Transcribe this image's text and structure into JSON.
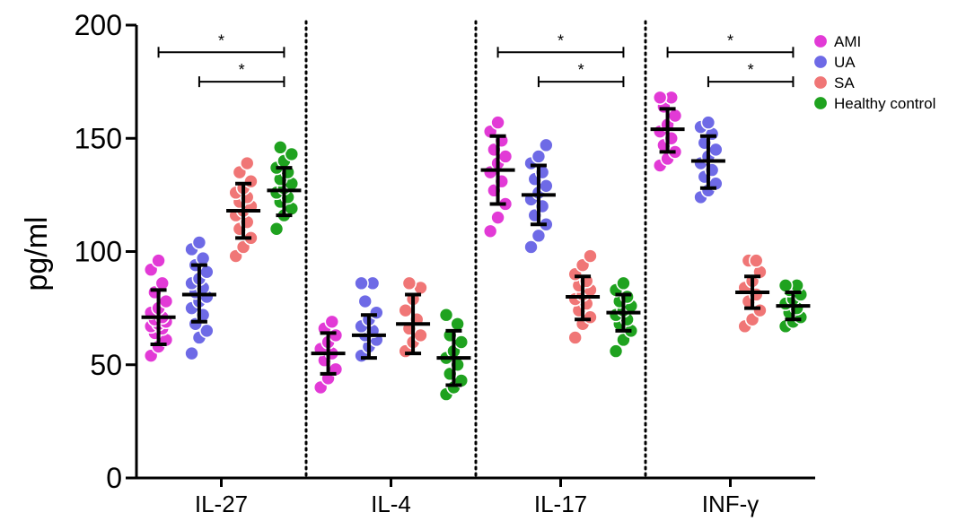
{
  "chart_data": {
    "type": "scatter",
    "ylabel": "pg/ml",
    "ylim": [
      0,
      200
    ],
    "yticks": [
      0,
      50,
      100,
      150,
      200
    ],
    "categories": [
      "IL-27",
      "IL-4",
      "IL-17",
      "INF-γ"
    ],
    "groups": [
      "AMI",
      "UA",
      "SA",
      "Healthy control"
    ],
    "colors": {
      "AMI": "#e23ad6",
      "UA": "#6e6ae6",
      "SA": "#f07676",
      "Healthy control": "#1fa21f"
    },
    "legend_position": "top-right",
    "points": {
      "IL-27": {
        "AMI": [
          54,
          58,
          61,
          64,
          66,
          67,
          68,
          69,
          70,
          71,
          73,
          75,
          78,
          82,
          86,
          92,
          96
        ],
        "UA": [
          55,
          62,
          65,
          68,
          72,
          75,
          78,
          80,
          82,
          84,
          86,
          88,
          91,
          94,
          97,
          101,
          104
        ],
        "SA": [
          98,
          102,
          106,
          110,
          113,
          116,
          118,
          120,
          122,
          124,
          126,
          128,
          131,
          135,
          139
        ],
        "Healthy control": [
          110,
          116,
          119,
          122,
          124,
          126,
          128,
          130,
          132,
          135,
          137,
          140,
          143,
          146
        ]
      },
      "IL-4": {
        "AMI": [
          40,
          44,
          48,
          52,
          55,
          57,
          60,
          63,
          66,
          69
        ],
        "UA": [
          54,
          58,
          61,
          63,
          65,
          67,
          70,
          73,
          78,
          86,
          86
        ],
        "SA": [
          56,
          60,
          63,
          66,
          70,
          74,
          79,
          84,
          86
        ],
        "Healthy control": [
          37,
          40,
          43,
          46,
          50,
          53,
          56,
          60,
          63,
          68,
          72
        ]
      },
      "IL-17": {
        "AMI": [
          109,
          115,
          121,
          127,
          131,
          135,
          139,
          142,
          145,
          149,
          153,
          157
        ],
        "UA": [
          102,
          107,
          112,
          116,
          120,
          123,
          126,
          129,
          132,
          135,
          139,
          142,
          147
        ],
        "SA": [
          62,
          68,
          71,
          74,
          77,
          79,
          81,
          83,
          85,
          87,
          90,
          94,
          98
        ],
        "Healthy control": [
          56,
          61,
          65,
          68,
          70,
          72,
          74,
          76,
          78,
          80,
          83,
          86
        ]
      },
      "INF-γ": {
        "AMI": [
          138,
          141,
          144,
          147,
          150,
          153,
          156,
          160,
          164,
          168,
          168
        ],
        "UA": [
          124,
          127,
          130,
          133,
          136,
          139,
          142,
          145,
          148,
          152,
          155,
          157
        ],
        "SA": [
          67,
          70,
          74,
          78,
          81,
          84,
          87,
          91,
          96,
          96
        ],
        "Healthy control": [
          67,
          69,
          71,
          73,
          75,
          77,
          79,
          81,
          83,
          85,
          85
        ]
      }
    },
    "summary": {
      "IL-27": {
        "AMI": [
          71,
          59,
          83
        ],
        "UA": [
          81,
          69,
          94
        ],
        "SA": [
          118,
          106,
          130
        ],
        "Healthy control": [
          127,
          116,
          137
        ]
      },
      "IL-4": {
        "AMI": [
          55,
          46,
          64
        ],
        "UA": [
          63,
          53,
          72
        ],
        "SA": [
          68,
          55,
          81
        ],
        "Healthy control": [
          53,
          41,
          65
        ]
      },
      "IL-17": {
        "AMI": [
          136,
          121,
          151
        ],
        "UA": [
          125,
          112,
          138
        ],
        "SA": [
          80,
          70,
          89
        ],
        "Healthy control": [
          73,
          65,
          81
        ]
      },
      "INF-γ": {
        "AMI": [
          154,
          144,
          163
        ],
        "UA": [
          140,
          128,
          151
        ],
        "SA": [
          82,
          75,
          89
        ],
        "Healthy control": [
          76,
          70,
          82
        ]
      }
    },
    "significance": [
      {
        "category": "IL-27",
        "from": "AMI",
        "to": "Healthy control",
        "y": 188,
        "label": "*"
      },
      {
        "category": "IL-27",
        "from": "UA",
        "to": "Healthy control",
        "y": 175,
        "label": "*"
      },
      {
        "category": "IL-17",
        "from": "AMI",
        "to": "Healthy control",
        "y": 188,
        "label": "*"
      },
      {
        "category": "IL-17",
        "from": "UA",
        "to": "Healthy control",
        "y": 175,
        "label": "*"
      },
      {
        "category": "INF-γ",
        "from": "AMI",
        "to": "Healthy control",
        "y": 188,
        "label": "*"
      },
      {
        "category": "INF-γ",
        "from": "UA",
        "to": "Healthy control",
        "y": 175,
        "label": "*"
      }
    ]
  }
}
